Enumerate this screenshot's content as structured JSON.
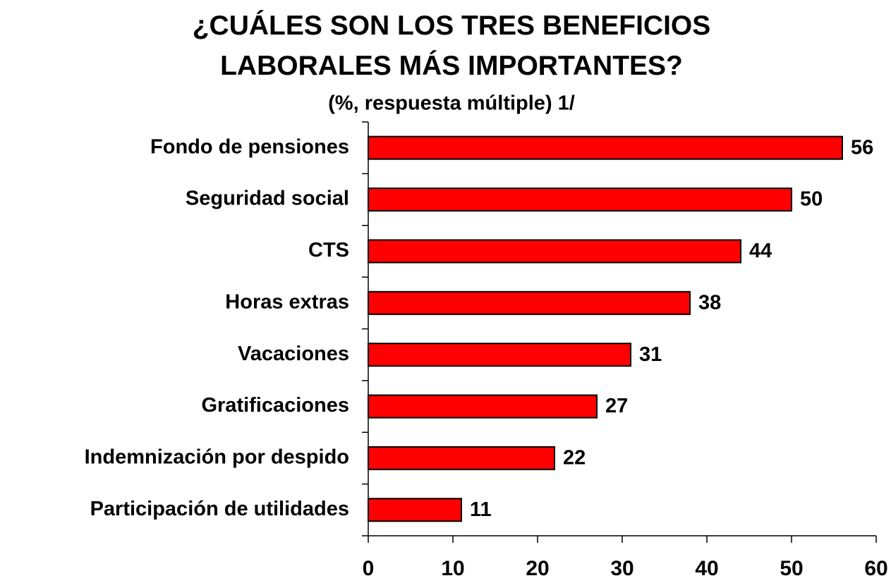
{
  "chart_data": {
    "type": "bar",
    "orientation": "horizontal",
    "title": "¿CUÁLES SON LOS TRES BENEFICIOS LABORALES MÁS IMPORTANTES?",
    "subtitle": "(%, respuesta múltiple) 1/",
    "categories": [
      "Fondo de pensiones",
      "Seguridad social",
      "CTS",
      "Horas extras",
      "Vacaciones",
      "Gratificaciones",
      "Indemnización por despido",
      "Participación de utilidades"
    ],
    "values": [
      56,
      50,
      44,
      38,
      31,
      27,
      22,
      11
    ],
    "color": "#ff0000",
    "xlim": [
      0,
      60
    ],
    "xticks": [
      0,
      10,
      20,
      30,
      40,
      50,
      60
    ],
    "grid": false
  }
}
